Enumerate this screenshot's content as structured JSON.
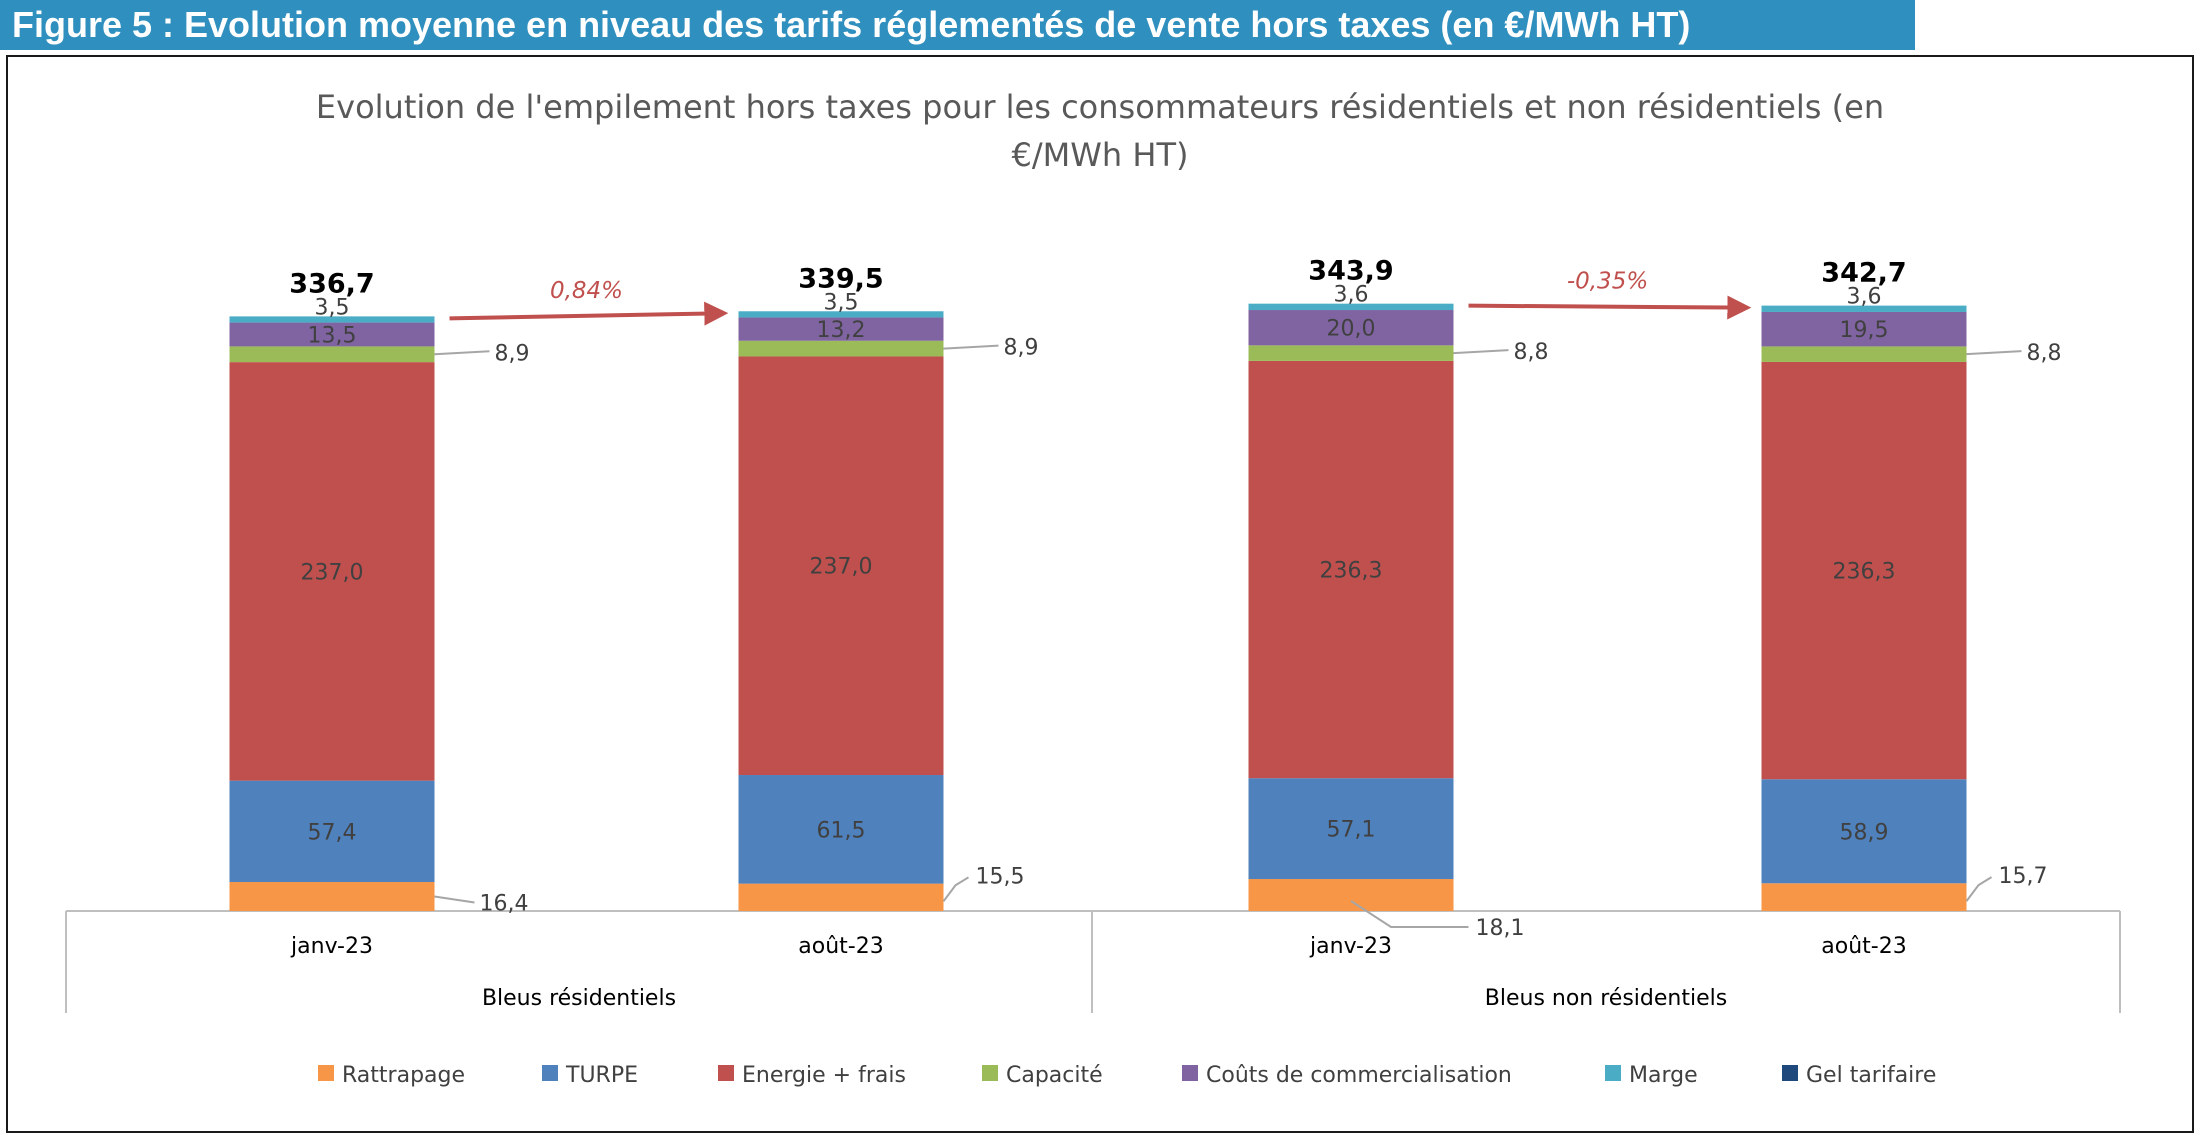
{
  "banner": {
    "title": "Figure 5 : Evolution moyenne en niveau des tarifs réglementés de vente hors taxes (en €/MWh HT)"
  },
  "chart_data": {
    "type": "bar",
    "stacked": true,
    "title_lines": [
      "Evolution de l'empilement hors taxes pour les consommateurs résidentiels et non résidentiels (en",
      "€/MWh HT)"
    ],
    "categories": [
      "janv-23",
      "août-23",
      "janv-23",
      "août-23"
    ],
    "groups": [
      {
        "label": "Bleus résidentiels",
        "categories": [
          0,
          1
        ]
      },
      {
        "label": "Bleus non résidentiels",
        "categories": [
          2,
          3
        ]
      }
    ],
    "series": [
      {
        "name": "Rattrapage",
        "color": "#f79646",
        "values": [
          16.4,
          15.5,
          18.1,
          15.7
        ],
        "labels": [
          "16,4",
          "15,5",
          "18,1",
          "15,7"
        ]
      },
      {
        "name": "TURPE",
        "color": "#4f81bd",
        "values": [
          57.4,
          61.5,
          57.1,
          58.9
        ],
        "labels": [
          "57,4",
          "61,5",
          "57,1",
          "58,9"
        ]
      },
      {
        "name": "Energie + frais",
        "color": "#c0504d",
        "values": [
          237.0,
          237.0,
          236.3,
          236.3
        ],
        "labels": [
          "237,0",
          "237,0",
          "236,3",
          "236,3"
        ]
      },
      {
        "name": "Capacité",
        "color": "#9bbb59",
        "values": [
          8.9,
          8.9,
          8.8,
          8.8
        ],
        "labels": [
          "8,9",
          "8,9",
          "8,8",
          "8,8"
        ]
      },
      {
        "name": "Coûts de commercialisation",
        "color": "#8064a2",
        "values": [
          13.5,
          13.2,
          20.0,
          19.5
        ],
        "labels": [
          "13,5",
          "13,2",
          "20,0",
          "19,5"
        ]
      },
      {
        "name": "Marge",
        "color": "#4bacc6",
        "values": [
          3.5,
          3.5,
          3.6,
          3.6
        ],
        "labels": [
          "3,5",
          "3,5",
          "3,6",
          "3,6"
        ]
      },
      {
        "name": "Gel tarifaire",
        "color": "#1f497d",
        "values": [
          0,
          0,
          0,
          0
        ],
        "labels": [
          "",
          "",
          "",
          ""
        ]
      }
    ],
    "totals": [
      336.7,
      339.5,
      343.9,
      342.7
    ],
    "total_labels": [
      "336,7",
      "339,5",
      "343,9",
      "342,7"
    ],
    "changes": [
      {
        "from": 0,
        "to": 1,
        "label": "0,84%"
      },
      {
        "from": 2,
        "to": 3,
        "label": "-0,35%"
      }
    ],
    "ylim": [
      0,
      350
    ],
    "grid": false,
    "legend_position": "bottom",
    "change_arrow_color": "#c0504d"
  }
}
